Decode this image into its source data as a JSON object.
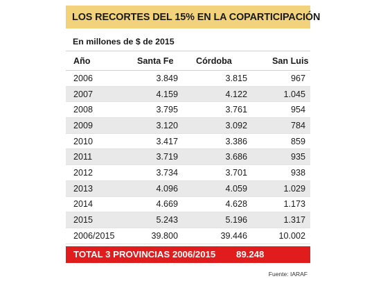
{
  "title": "LOS RECORTES DEL 15% EN LA COPARTICIPACIÓN",
  "subtitle": "En millones de $ de 2015",
  "headers": [
    "Año",
    "Santa Fe",
    "Córdoba",
    "San Luis"
  ],
  "rows": [
    [
      "2006",
      "3.849",
      "3.815",
      "967"
    ],
    [
      "2007",
      "4.159",
      "4.122",
      "1.045"
    ],
    [
      "2008",
      "3.795",
      "3.761",
      "954"
    ],
    [
      "2009",
      "3.120",
      "3.092",
      "784"
    ],
    [
      "2010",
      "3.417",
      "3.386",
      "859"
    ],
    [
      "2011",
      "3.719",
      "3.686",
      "935"
    ],
    [
      "2012",
      "3.734",
      "3.701",
      "938"
    ],
    [
      "2013",
      "4.096",
      "4.059",
      "1.029"
    ],
    [
      "2014",
      "4.669",
      "4.628",
      "1.173"
    ],
    [
      "2015",
      "5.243",
      "5.196",
      "1.317"
    ],
    [
      "2006/2015",
      "39.800",
      "39.446",
      "10.002"
    ]
  ],
  "total": {
    "label": "TOTAL 3 PROVINCIAS 2006/2015",
    "value": "89.248"
  },
  "source": "Fuente: IARAF",
  "colors": {
    "title_bg": "#f2d27a",
    "total_bg": "#e11c1c",
    "row_alt": "#e9e9e9"
  }
}
